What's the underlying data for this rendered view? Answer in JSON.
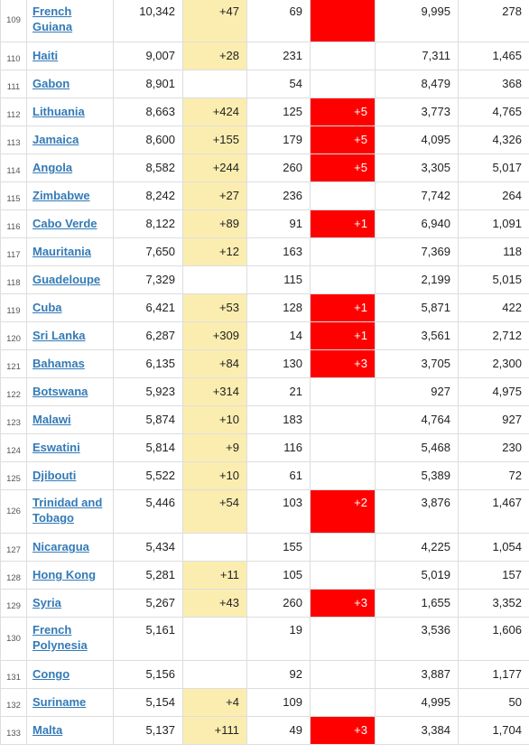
{
  "colors": {
    "link": "#337ab7",
    "new_cases_bg": "#fbedb0",
    "new_deaths_bg": "#ff0000"
  },
  "rows": [
    {
      "rank": "109",
      "country": "French Guiana",
      "cases": "10,342",
      "new_cases": "+47",
      "deaths": "69",
      "new_deaths": "",
      "recovered": "9,995",
      "active": "278",
      "new_deaths_highlight": true
    },
    {
      "rank": "110",
      "country": "Haiti",
      "cases": "9,007",
      "new_cases": "+28",
      "deaths": "231",
      "new_deaths": "",
      "recovered": "7,311",
      "active": "1,465"
    },
    {
      "rank": "111",
      "country": "Gabon",
      "cases": "8,901",
      "new_cases": "",
      "deaths": "54",
      "new_deaths": "",
      "recovered": "8,479",
      "active": "368"
    },
    {
      "rank": "112",
      "country": "Lithuania",
      "cases": "8,663",
      "new_cases": "+424",
      "deaths": "125",
      "new_deaths": "+5",
      "recovered": "3,773",
      "active": "4,765"
    },
    {
      "rank": "113",
      "country": "Jamaica",
      "cases": "8,600",
      "new_cases": "+155",
      "deaths": "179",
      "new_deaths": "+5",
      "recovered": "4,095",
      "active": "4,326"
    },
    {
      "rank": "114",
      "country": "Angola",
      "cases": "8,582",
      "new_cases": "+244",
      "deaths": "260",
      "new_deaths": "+5",
      "recovered": "3,305",
      "active": "5,017"
    },
    {
      "rank": "115",
      "country": "Zimbabwe",
      "cases": "8,242",
      "new_cases": "+27",
      "deaths": "236",
      "new_deaths": "",
      "recovered": "7,742",
      "active": "264"
    },
    {
      "rank": "116",
      "country": "Cabo Verde",
      "cases": "8,122",
      "new_cases": "+89",
      "deaths": "91",
      "new_deaths": "+1",
      "recovered": "6,940",
      "active": "1,091"
    },
    {
      "rank": "117",
      "country": "Mauritania",
      "cases": "7,650",
      "new_cases": "+12",
      "deaths": "163",
      "new_deaths": "",
      "recovered": "7,369",
      "active": "118"
    },
    {
      "rank": "118",
      "country": "Guadeloupe",
      "cases": "7,329",
      "new_cases": "",
      "deaths": "115",
      "new_deaths": "",
      "recovered": "2,199",
      "active": "5,015"
    },
    {
      "rank": "119",
      "country": "Cuba",
      "cases": "6,421",
      "new_cases": "+53",
      "deaths": "128",
      "new_deaths": "+1",
      "recovered": "5,871",
      "active": "422"
    },
    {
      "rank": "120",
      "country": "Sri Lanka",
      "cases": "6,287",
      "new_cases": "+309",
      "deaths": "14",
      "new_deaths": "+1",
      "recovered": "3,561",
      "active": "2,712"
    },
    {
      "rank": "121",
      "country": "Bahamas",
      "cases": "6,135",
      "new_cases": "+84",
      "deaths": "130",
      "new_deaths": "+3",
      "recovered": "3,705",
      "active": "2,300"
    },
    {
      "rank": "122",
      "country": "Botswana",
      "cases": "5,923",
      "new_cases": "+314",
      "deaths": "21",
      "new_deaths": "",
      "recovered": "927",
      "active": "4,975"
    },
    {
      "rank": "123",
      "country": "Malawi",
      "cases": "5,874",
      "new_cases": "+10",
      "deaths": "183",
      "new_deaths": "",
      "recovered": "4,764",
      "active": "927"
    },
    {
      "rank": "124",
      "country": "Eswatini",
      "cases": "5,814",
      "new_cases": "+9",
      "deaths": "116",
      "new_deaths": "",
      "recovered": "5,468",
      "active": "230"
    },
    {
      "rank": "125",
      "country": "Djibouti",
      "cases": "5,522",
      "new_cases": "+10",
      "deaths": "61",
      "new_deaths": "",
      "recovered": "5,389",
      "active": "72"
    },
    {
      "rank": "126",
      "country": "Trinidad and Tobago",
      "cases": "5,446",
      "new_cases": "+54",
      "deaths": "103",
      "new_deaths": "+2",
      "recovered": "3,876",
      "active": "1,467"
    },
    {
      "rank": "127",
      "country": "Nicaragua",
      "cases": "5,434",
      "new_cases": "",
      "deaths": "155",
      "new_deaths": "",
      "recovered": "4,225",
      "active": "1,054"
    },
    {
      "rank": "128",
      "country": "Hong Kong",
      "cases": "5,281",
      "new_cases": "+11",
      "deaths": "105",
      "new_deaths": "",
      "recovered": "5,019",
      "active": "157"
    },
    {
      "rank": "129",
      "country": "Syria",
      "cases": "5,267",
      "new_cases": "+43",
      "deaths": "260",
      "new_deaths": "+3",
      "recovered": "1,655",
      "active": "3,352"
    },
    {
      "rank": "130",
      "country": "French Polynesia",
      "cases": "5,161",
      "new_cases": "",
      "deaths": "19",
      "new_deaths": "",
      "recovered": "3,536",
      "active": "1,606"
    },
    {
      "rank": "131",
      "country": "Congo",
      "cases": "5,156",
      "new_cases": "",
      "deaths": "92",
      "new_deaths": "",
      "recovered": "3,887",
      "active": "1,177"
    },
    {
      "rank": "132",
      "country": "Suriname",
      "cases": "5,154",
      "new_cases": "+4",
      "deaths": "109",
      "new_deaths": "",
      "recovered": "4,995",
      "active": "50"
    },
    {
      "rank": "133",
      "country": "Malta",
      "cases": "5,137",
      "new_cases": "+111",
      "deaths": "49",
      "new_deaths": "+3",
      "recovered": "3,384",
      "active": "1,704"
    }
  ]
}
